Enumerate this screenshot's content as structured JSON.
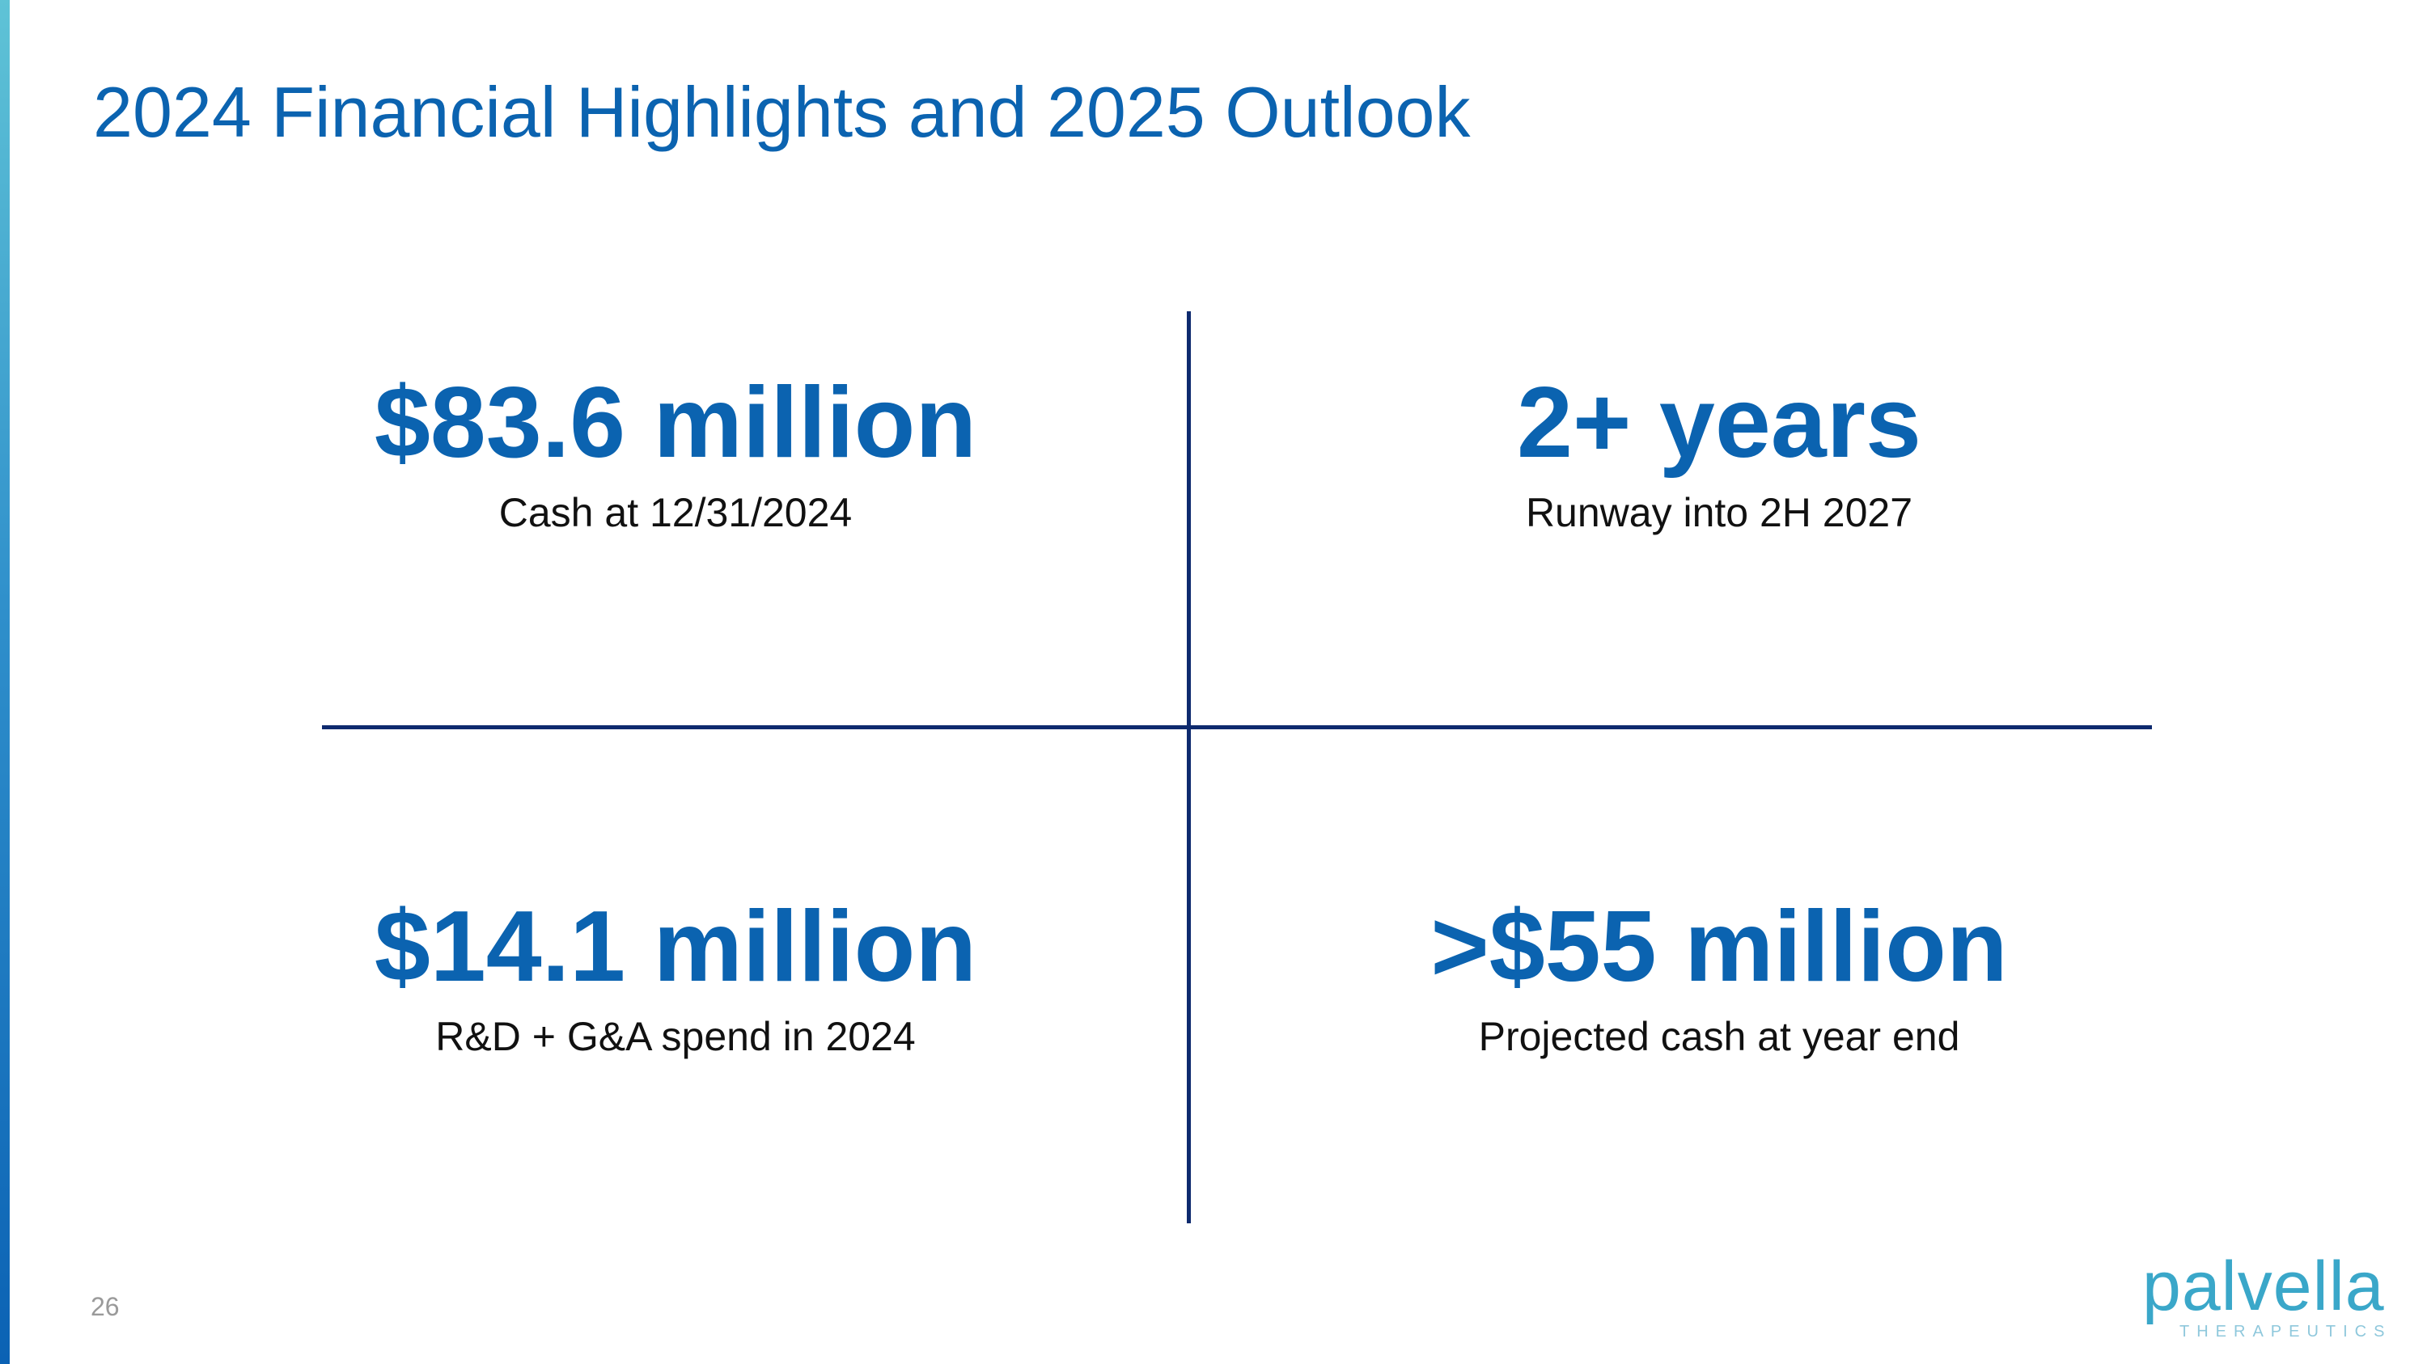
{
  "slide": {
    "title": "2024 Financial Highlights and 2025 Outlook",
    "page_number": "26"
  },
  "highlights": [
    {
      "value": "$83.6 million",
      "caption": "Cash at 12/31/2024"
    },
    {
      "value": "2+ years",
      "caption": "Runway into 2H 2027"
    },
    {
      "value": "$14.1 million",
      "caption": "R&D + G&A spend in 2024"
    },
    {
      "value": ">$55 million",
      "caption": "Projected cash at year end"
    }
  ],
  "logo": {
    "name": "palvella",
    "tagline": "THERAPEUTICS"
  },
  "colors": {
    "title": "#0b63b0",
    "divider": "#0e2a6e",
    "logo": "#3aa7c9"
  }
}
